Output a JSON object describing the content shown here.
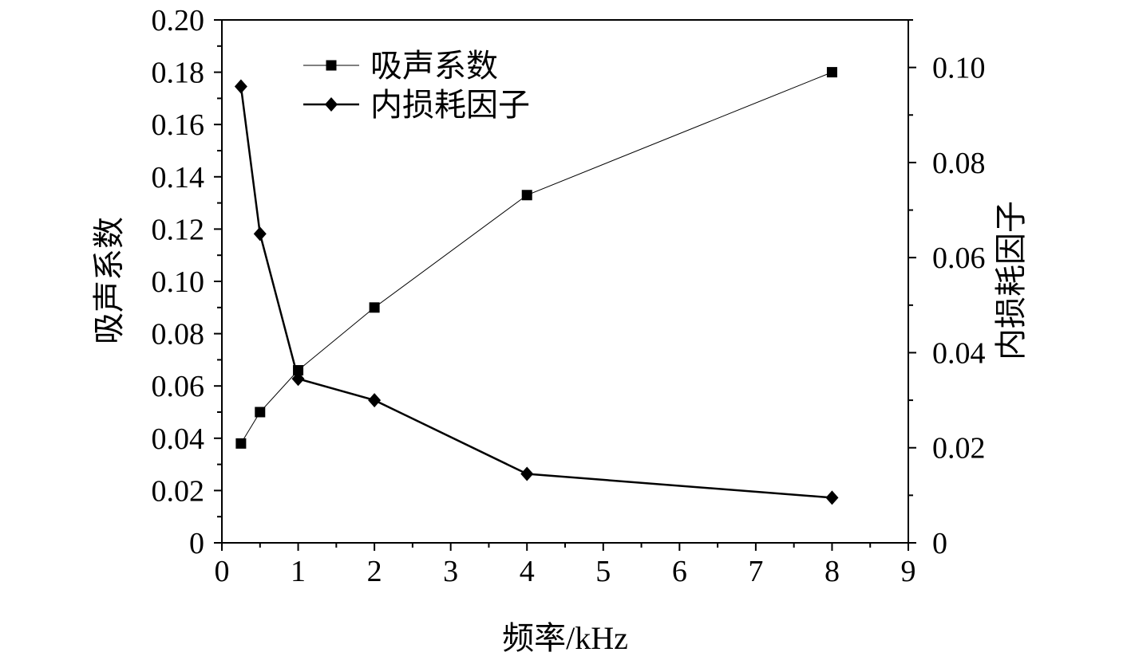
{
  "chart_data": {
    "type": "line",
    "x": [
      0.25,
      0.5,
      1,
      2,
      4,
      8
    ],
    "xlabel": "频率/kHz",
    "xlim": [
      0,
      9
    ],
    "xticks": [
      "0",
      "1",
      "2",
      "3",
      "4",
      "5",
      "6",
      "7",
      "8",
      "9"
    ],
    "ylabel_left": "吸声系数",
    "ylim_left": [
      0,
      0.2
    ],
    "yticks_left": [
      "0",
      "0.02",
      "0.04",
      "0.06",
      "0.08",
      "0.10",
      "0.12",
      "0.14",
      "0.16",
      "0.18",
      "0.20"
    ],
    "ylabel_right": "内损耗因子",
    "ylim_right": [
      0,
      0.11
    ],
    "yticks_right": [
      "0",
      "0.02",
      "0.04",
      "0.06",
      "0.08",
      "0.10"
    ],
    "grid": false,
    "legend_position": "top-left",
    "series": [
      {
        "name": "吸声系数",
        "axis": "left",
        "marker": "square",
        "line": "thin",
        "values": [
          0.038,
          0.05,
          0.066,
          0.09,
          0.133,
          0.18
        ]
      },
      {
        "name": "内损耗因子",
        "axis": "right",
        "marker": "diamond",
        "line": "thick",
        "values": [
          0.096,
          0.065,
          0.0345,
          0.03,
          0.0145,
          0.0095
        ]
      }
    ],
    "colors": {
      "line": "#000000",
      "background": "#ffffff"
    }
  }
}
